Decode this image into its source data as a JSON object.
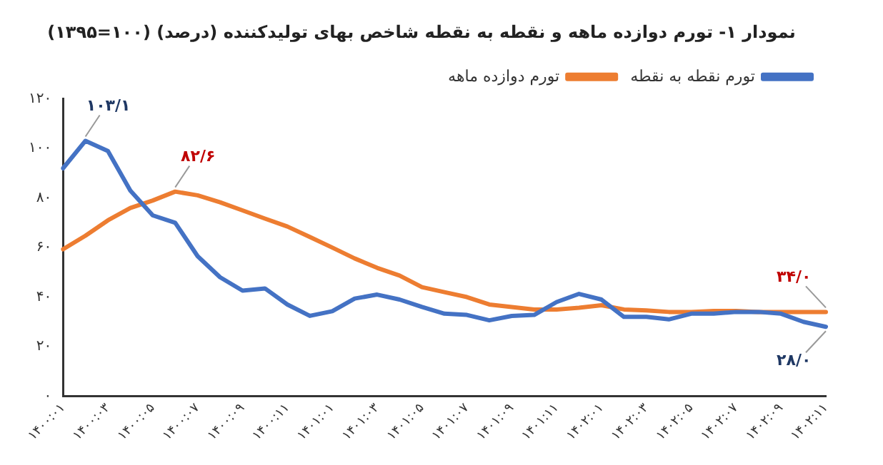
{
  "chart_data": {
    "type": "line",
    "title": "نمودار ۱- تورم دوازده ماهه و نقطه به نقطه شاخص بهای تولیدکننده (درصد) (۱۰۰=۱۳۹۵)",
    "categories": [
      "۱۴۰۰:۰۱",
      null,
      "۱۴۰۰:۰۳",
      null,
      "۱۴۰۰:۰۵",
      null,
      "۱۴۰۰:۰۷",
      null,
      "۱۴۰۰:۰۹",
      null,
      "۱۴۰۰:۱۱",
      null,
      "۱۴۰۱:۰۱",
      null,
      "۱۴۰۱:۰۳",
      null,
      "۱۴۰۱:۰۵",
      null,
      "۱۴۰۱:۰۷",
      null,
      "۱۴۰۱:۰۹",
      null,
      "۱۴۰۱:۱۱",
      null,
      "۱۴۰۲:۰۱",
      null,
      "۱۴۰۲:۰۳",
      null,
      "۱۴۰۲:۰۵",
      null,
      "۱۴۰۲:۰۷",
      null,
      "۱۴۰۲:۰۹",
      null,
      "۱۴۰۲:۱۱"
    ],
    "series": [
      {
        "name": "تورم نقطه به نقطه",
        "color": "#4472c4",
        "values": [
          92,
          103.1,
          99,
          83,
          73,
          70,
          56.5,
          48,
          42.6,
          43.5,
          37,
          32.4,
          34.3,
          39.4,
          41,
          39,
          36,
          33.3,
          32.8,
          30.6,
          32.4,
          32.8,
          38,
          41.3,
          39,
          32,
          32,
          31,
          33.3,
          33.3,
          34,
          34,
          33.3,
          30,
          28.0
        ],
        "value_labels": [
          null,
          "۱۰۳/۱",
          null,
          null,
          null,
          null,
          null,
          null,
          null,
          null,
          null,
          null,
          null,
          null,
          null,
          null,
          null,
          null,
          null,
          null,
          null,
          null,
          null,
          null,
          null,
          null,
          null,
          null,
          null,
          null,
          null,
          null,
          null,
          null,
          "۲۸/۰"
        ]
      },
      {
        "name": "تورم دوازده ماهه",
        "color": "#ed7d31",
        "values": [
          59.3,
          64.8,
          71,
          76,
          79,
          82.6,
          81.1,
          78.3,
          75,
          71.7,
          68.5,
          64.3,
          60,
          55.6,
          51.8,
          48.7,
          44,
          42,
          40,
          37,
          36,
          35,
          35,
          35.7,
          36.7,
          35,
          34.6,
          34,
          34,
          34.4,
          34.4,
          34,
          34,
          34,
          34.0
        ],
        "value_labels": [
          null,
          null,
          null,
          null,
          null,
          "۸۲/۶",
          null,
          null,
          null,
          null,
          null,
          null,
          null,
          null,
          null,
          null,
          null,
          null,
          null,
          null,
          null,
          null,
          null,
          null,
          null,
          null,
          null,
          null,
          null,
          null,
          null,
          null,
          null,
          null,
          "۳۴/۰"
        ]
      }
    ],
    "ylim": [
      0,
      120
    ],
    "yticks": [
      {
        "value": 0,
        "label": "۰"
      },
      {
        "value": 20,
        "label": "۲۰"
      },
      {
        "value": 40,
        "label": "۴۰"
      },
      {
        "value": 60,
        "label": "۶۰"
      },
      {
        "value": 80,
        "label": "۸۰"
      },
      {
        "value": 100,
        "label": "۱۰۰"
      },
      {
        "value": 120,
        "label": "۱۲۰"
      }
    ],
    "grid": false,
    "legend": "top right",
    "marker": "none",
    "line_style": "solid"
  }
}
